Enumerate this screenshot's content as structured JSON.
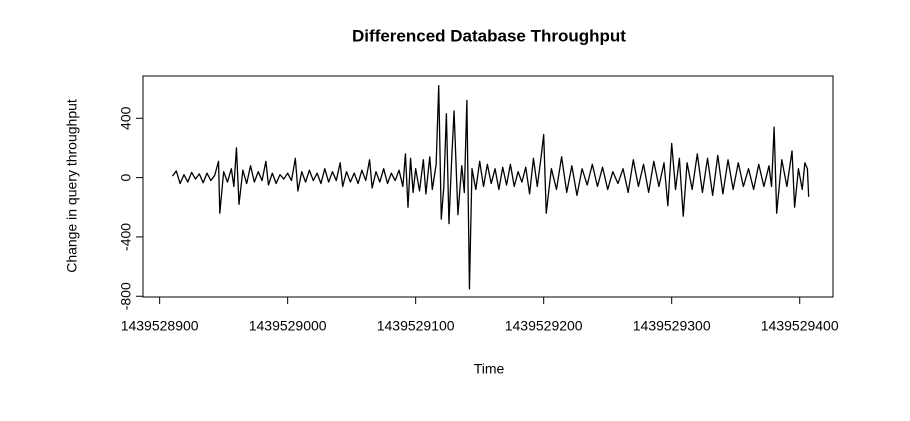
{
  "chart_data": {
    "type": "line",
    "title": "Differenced Database Throughput",
    "x_label": "Time",
    "y_label": "Change in query throughput",
    "color": "#000000",
    "x": [
      1439528910,
      1439528913,
      1439528916,
      1439528919,
      1439528922,
      1439528925,
      1439528928,
      1439528931,
      1439528934,
      1439528937,
      1439528940,
      1439528943,
      1439528946,
      1439528947,
      1439528950,
      1439528953,
      1439528956,
      1439528958,
      1439528960,
      1439528962,
      1439528965,
      1439528968,
      1439528971,
      1439528974,
      1439528977,
      1439528980,
      1439528983,
      1439528985,
      1439528988,
      1439528991,
      1439528994,
      1439528997,
      1439529000,
      1439529003,
      1439529006,
      1439529008,
      1439529011,
      1439529014,
      1439529017,
      1439529020,
      1439529023,
      1439529026,
      1439529029,
      1439529032,
      1439529035,
      1439529038,
      1439529041,
      1439529043,
      1439529046,
      1439529049,
      1439529052,
      1439529055,
      1439529058,
      1439529061,
      1439529064,
      1439529066,
      1439529069,
      1439529072,
      1439529075,
      1439529078,
      1439529081,
      1439529084,
      1439529087,
      1439529090,
      1439529092,
      1439529094,
      1439529096,
      1439529098,
      1439529100,
      1439529103,
      1439529106,
      1439529108,
      1439529111,
      1439529113,
      1439529116,
      1439529118,
      1439529120,
      1439529122,
      1439529124,
      1439529126,
      1439529128,
      1439529130,
      1439529133,
      1439529136,
      1439529138,
      1439529140,
      1439529142,
      1439529144,
      1439529147,
      1439529150,
      1439529153,
      1439529156,
      1439529159,
      1439529162,
      1439529165,
      1439529168,
      1439529171,
      1439529174,
      1439529177,
      1439529180,
      1439529183,
      1439529186,
      1439529189,
      1439529192,
      1439529195,
      1439529198,
      1439529200,
      1439529202,
      1439529206,
      1439529210,
      1439529214,
      1439529218,
      1439529222,
      1439529226,
      1439529230,
      1439529234,
      1439529238,
      1439529242,
      1439529246,
      1439529250,
      1439529254,
      1439529258,
      1439529262,
      1439529266,
      1439529270,
      1439529274,
      1439529278,
      1439529282,
      1439529286,
      1439529290,
      1439529294,
      1439529297,
      1439529300,
      1439529303,
      1439529306,
      1439529309,
      1439529312,
      1439529316,
      1439529320,
      1439529324,
      1439529328,
      1439529332,
      1439529336,
      1439529340,
      1439529344,
      1439529348,
      1439529352,
      1439529356,
      1439529360,
      1439529364,
      1439529368,
      1439529372,
      1439529376,
      1439529378,
      1439529380,
      1439529382,
      1439529386,
      1439529390,
      1439529394,
      1439529396,
      1439529399,
      1439529402,
      1439529404,
      1439529406,
      1439529407
    ],
    "values": [
      10,
      45,
      -40,
      20,
      -30,
      35,
      -10,
      25,
      -35,
      30,
      -20,
      15,
      110,
      -240,
      40,
      -30,
      60,
      -60,
      200,
      -180,
      50,
      -40,
      80,
      -30,
      40,
      -20,
      110,
      -50,
      30,
      -40,
      20,
      -10,
      30,
      -20,
      130,
      -90,
      40,
      -30,
      50,
      -20,
      30,
      -40,
      60,
      -30,
      40,
      -20,
      100,
      -60,
      40,
      -30,
      30,
      -40,
      50,
      -20,
      120,
      -70,
      40,
      -30,
      60,
      -40,
      30,
      -20,
      50,
      -60,
      160,
      -200,
      130,
      -100,
      60,
      -90,
      120,
      -110,
      140,
      -80,
      90,
      620,
      -280,
      -60,
      430,
      -310,
      100,
      450,
      -250,
      80,
      -100,
      520,
      -750,
      60,
      -80,
      110,
      -60,
      90,
      -40,
      60,
      -80,
      70,
      -50,
      90,
      -60,
      40,
      -30,
      70,
      -110,
      130,
      -60,
      140,
      290,
      -240,
      60,
      -80,
      140,
      -100,
      80,
      -120,
      60,
      -50,
      90,
      -60,
      70,
      -80,
      40,
      -40,
      60,
      -100,
      120,
      -60,
      90,
      -100,
      110,
      -60,
      100,
      -190,
      230,
      -80,
      130,
      -260,
      100,
      -80,
      160,
      -100,
      130,
      -120,
      150,
      -110,
      120,
      -80,
      100,
      -60,
      60,
      -80,
      90,
      -60,
      80,
      -60,
      340,
      -240,
      120,
      -60,
      180,
      -200,
      60,
      -80,
      100,
      60,
      -130
    ],
    "xlim": [
      1439528887,
      1439529426
    ],
    "xticks": [
      1439528900,
      1439529000,
      1439529100,
      1439529200,
      1439529300,
      1439529400
    ],
    "ylim": [
      -805,
      685
    ],
    "yticks": [
      -800,
      -400,
      0,
      400
    ]
  }
}
